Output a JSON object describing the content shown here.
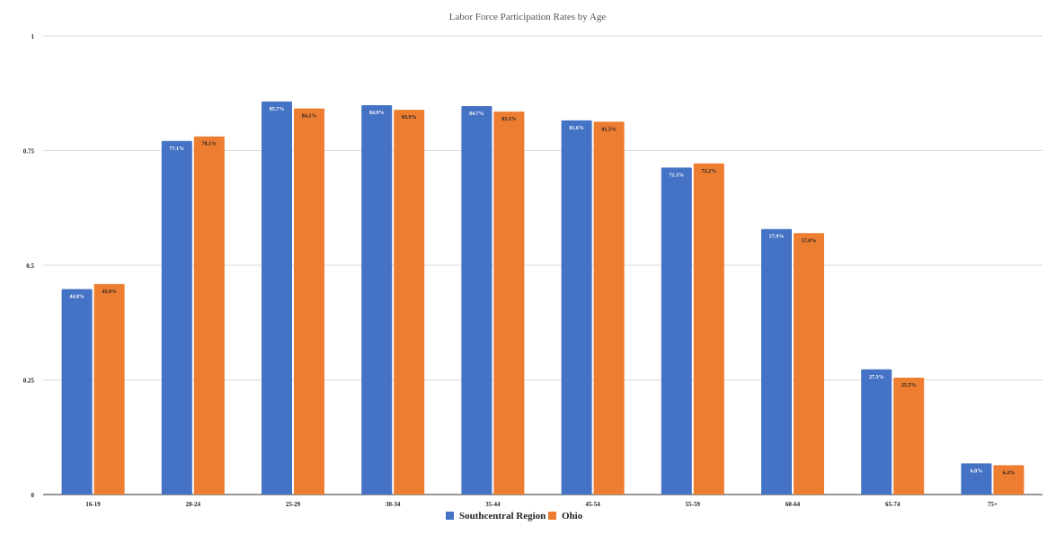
{
  "chart_data": {
    "type": "bar",
    "title": "Labor Force Participation Rates by Age",
    "xlabel": "",
    "ylabel": "",
    "ylim": [
      0,
      1
    ],
    "yticks": [
      0,
      0.25,
      0.5,
      0.75,
      1
    ],
    "ytick_labels": [
      "0",
      "0.25",
      "0.5",
      "0.75",
      "1"
    ],
    "grid": true,
    "legend_position": "bottom",
    "categories": [
      "16-19",
      "20-24",
      "25-29",
      "30-34",
      "35-44",
      "45-54",
      "55-59",
      "60-64",
      "65-74",
      "75+"
    ],
    "series": [
      {
        "name": "Southcentral Region",
        "color": "#4472c4",
        "values": [
          0.448,
          0.771,
          0.857,
          0.849,
          0.847,
          0.816,
          0.713,
          0.579,
          0.273,
          0.068
        ],
        "labels": [
          "44.8%",
          "77.1%",
          "85.7%",
          "84.9%",
          "84.7%",
          "81.6%",
          "71.3%",
          "57.9%",
          "27.3%",
          "6.8%"
        ]
      },
      {
        "name": "Ohio",
        "color": "#ed7d31",
        "values": [
          0.459,
          0.781,
          0.842,
          0.839,
          0.835,
          0.813,
          0.722,
          0.57,
          0.255,
          0.064
        ],
        "labels": [
          "45.9%",
          "78.1%",
          "84.2%",
          "83.9%",
          "83.5%",
          "81.3%",
          "72.2%",
          "57.0%",
          "25.5%",
          "6.4%"
        ]
      }
    ]
  }
}
